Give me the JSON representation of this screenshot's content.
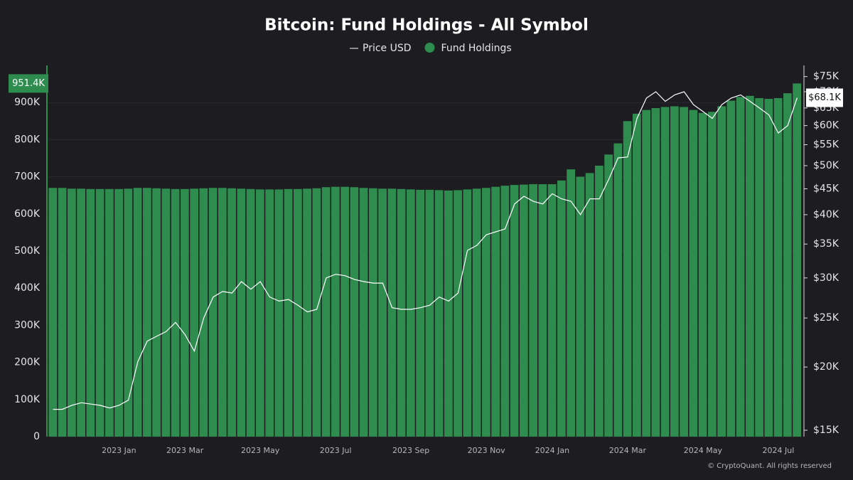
{
  "chart_data": {
    "type": "bar",
    "title": "Bitcoin: Fund Holdings - All Symbol",
    "footer": "© CryptoQuant. All rights reserved",
    "categories": [
      null,
      null,
      null,
      null,
      null,
      null,
      null,
      "2023 Jan",
      null,
      null,
      null,
      null,
      null,
      null,
      "2023 Mar",
      null,
      null,
      null,
      null,
      null,
      null,
      null,
      "2023 May",
      null,
      null,
      null,
      null,
      null,
      null,
      null,
      "2023 Jul",
      null,
      null,
      null,
      null,
      null,
      null,
      null,
      "2023 Sep",
      null,
      null,
      null,
      null,
      null,
      null,
      null,
      "2023 Nov",
      null,
      null,
      null,
      null,
      null,
      null,
      "2024 Jan",
      null,
      null,
      null,
      null,
      null,
      null,
      null,
      "2024 Mar",
      null,
      null,
      null,
      null,
      null,
      null,
      null,
      "2024 May",
      null,
      null,
      null,
      null,
      null,
      null,
      null,
      "2024 Jul",
      null,
      null
    ],
    "series": [
      {
        "name": "Price USD",
        "type": "line",
        "axis": "y2",
        "color": "#ffffff",
        "values": [
          16500,
          16500,
          16800,
          17000,
          16900,
          16800,
          16600,
          16800,
          17200,
          20500,
          22500,
          23000,
          23500,
          24500,
          23200,
          21500,
          25000,
          27500,
          28200,
          28000,
          29500,
          28500,
          29500,
          27500,
          27000,
          27200,
          26500,
          25700,
          26000,
          30000,
          30500,
          30300,
          29800,
          29500,
          29300,
          29300,
          26200,
          26000,
          26000,
          26200,
          26500,
          27500,
          27000,
          28000,
          34000,
          34800,
          36500,
          37000,
          37500,
          42000,
          43500,
          42500,
          42000,
          44000,
          43000,
          42500,
          40000,
          43000,
          43000,
          47000,
          51800,
          52000,
          62000,
          68000,
          70000,
          67000,
          69000,
          70000,
          66000,
          64000,
          62000,
          66000,
          68000,
          69000,
          67000,
          65000,
          63000,
          58000,
          60000,
          68100
        ]
      },
      {
        "name": "Fund Holdings",
        "type": "bar",
        "color": "#2f8c4f",
        "values": [
          670000,
          670000,
          668000,
          668000,
          667000,
          667000,
          667000,
          667000,
          668000,
          670000,
          670000,
          669000,
          668000,
          667000,
          667000,
          668000,
          669000,
          670000,
          670000,
          669000,
          668000,
          667000,
          666000,
          666000,
          666000,
          667000,
          667000,
          668000,
          669000,
          672000,
          673000,
          673000,
          672000,
          670000,
          669000,
          668000,
          668000,
          667000,
          666000,
          665000,
          665000,
          664000,
          663000,
          664000,
          666000,
          668000,
          670000,
          673000,
          676000,
          678000,
          679000,
          680000,
          680000,
          680000,
          690000,
          720000,
          700000,
          710000,
          730000,
          760000,
          790000,
          850000,
          870000,
          880000,
          885000,
          888000,
          890000,
          888000,
          880000,
          872000,
          875000,
          890000,
          905000,
          915000,
          918000,
          912000,
          910000,
          912000,
          925000,
          951400
        ]
      }
    ],
    "annotations": [
      {
        "series": 1,
        "label": "951.4K"
      },
      {
        "series": 0,
        "label": "$68.1K"
      }
    ],
    "ylim": [
      0,
      1000000
    ],
    "yticks": [
      0,
      {
        "value": 100000,
        "label": "100K"
      },
      {
        "value": 200000,
        "label": "200K"
      },
      {
        "value": 300000,
        "label": "300K"
      },
      {
        "value": 400000,
        "label": "400K"
      },
      {
        "value": 500000,
        "label": "500K"
      },
      {
        "value": 600000,
        "label": "600K"
      },
      {
        "value": 700000,
        "label": "700K"
      },
      {
        "value": 800000,
        "label": "800K"
      },
      {
        "value": 900000,
        "label": "900K"
      }
    ],
    "y2lim": [
      14570,
      78900
    ],
    "y2log": true,
    "y2ticks": [
      {
        "value": 15000,
        "label": "$15K"
      },
      {
        "value": 20000,
        "label": "$20K"
      },
      {
        "value": 25000,
        "label": "$25K"
      },
      {
        "value": 30000,
        "label": "$30K"
      },
      {
        "value": 35000,
        "label": "$35K"
      },
      {
        "value": 40000,
        "label": "$40K"
      },
      {
        "value": 45000,
        "label": "$45K"
      },
      {
        "value": 50000,
        "label": "$50K"
      },
      {
        "value": 55000,
        "label": "$55K"
      },
      {
        "value": 60000,
        "label": "$60K"
      },
      {
        "value": 65000,
        "label": "$65K"
      },
      {
        "value": 70000,
        "label": "$70K"
      },
      {
        "value": 75000,
        "label": "$75K"
      }
    ],
    "grid": true
  }
}
